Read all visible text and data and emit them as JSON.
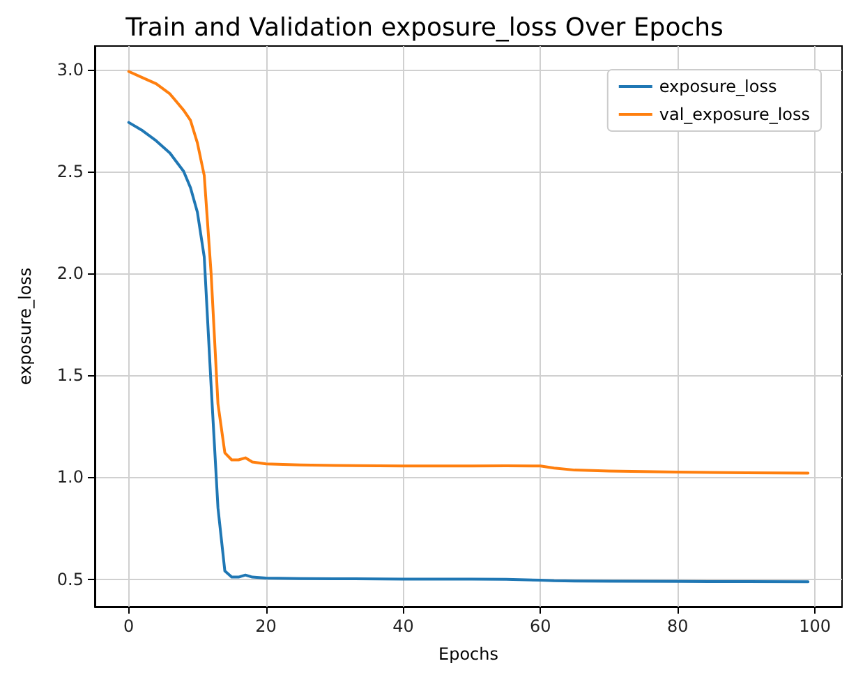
{
  "chart_data": {
    "type": "line",
    "title": "Train and Validation exposure_loss Over Epochs",
    "xlabel": "Epochs",
    "ylabel": "exposure_loss",
    "x": [
      0,
      2,
      4,
      6,
      8,
      9,
      10,
      11,
      12,
      13,
      14,
      15,
      16,
      17,
      18,
      20,
      25,
      30,
      40,
      50,
      55,
      60,
      62,
      65,
      70,
      80,
      90,
      99
    ],
    "series": [
      {
        "name": "exposure_loss",
        "color": "#1f77b4",
        "values": [
          2.74,
          2.7,
          2.65,
          2.59,
          2.5,
          2.42,
          2.3,
          2.08,
          1.45,
          0.85,
          0.54,
          0.51,
          0.51,
          0.52,
          0.51,
          0.505,
          0.503,
          0.502,
          0.5,
          0.5,
          0.499,
          0.495,
          0.492,
          0.491,
          0.49,
          0.489,
          0.488,
          0.487
        ]
      },
      {
        "name": "val_exposure_loss",
        "color": "#ff7f0e",
        "values": [
          2.99,
          2.96,
          2.93,
          2.88,
          2.8,
          2.75,
          2.64,
          2.48,
          2.0,
          1.36,
          1.12,
          1.085,
          1.085,
          1.095,
          1.075,
          1.065,
          1.06,
          1.058,
          1.055,
          1.055,
          1.056,
          1.055,
          1.045,
          1.035,
          1.03,
          1.025,
          1.022,
          1.02
        ]
      }
    ],
    "xlim": [
      -4.95,
      103.95
    ],
    "xticks": [
      0,
      20,
      40,
      60,
      80,
      100
    ],
    "ylim": [
      0.365,
      3.115
    ],
    "yticks": [
      0.5,
      {
        "value": 1,
        "label": "1.0"
      },
      1.5,
      {
        "value": 2,
        "label": "2.0"
      },
      2.5,
      {
        "value": 3,
        "label": "3.0"
      }
    ],
    "grid": true,
    "legend": "top right",
    "marker": "none",
    "line_style": "solid"
  }
}
